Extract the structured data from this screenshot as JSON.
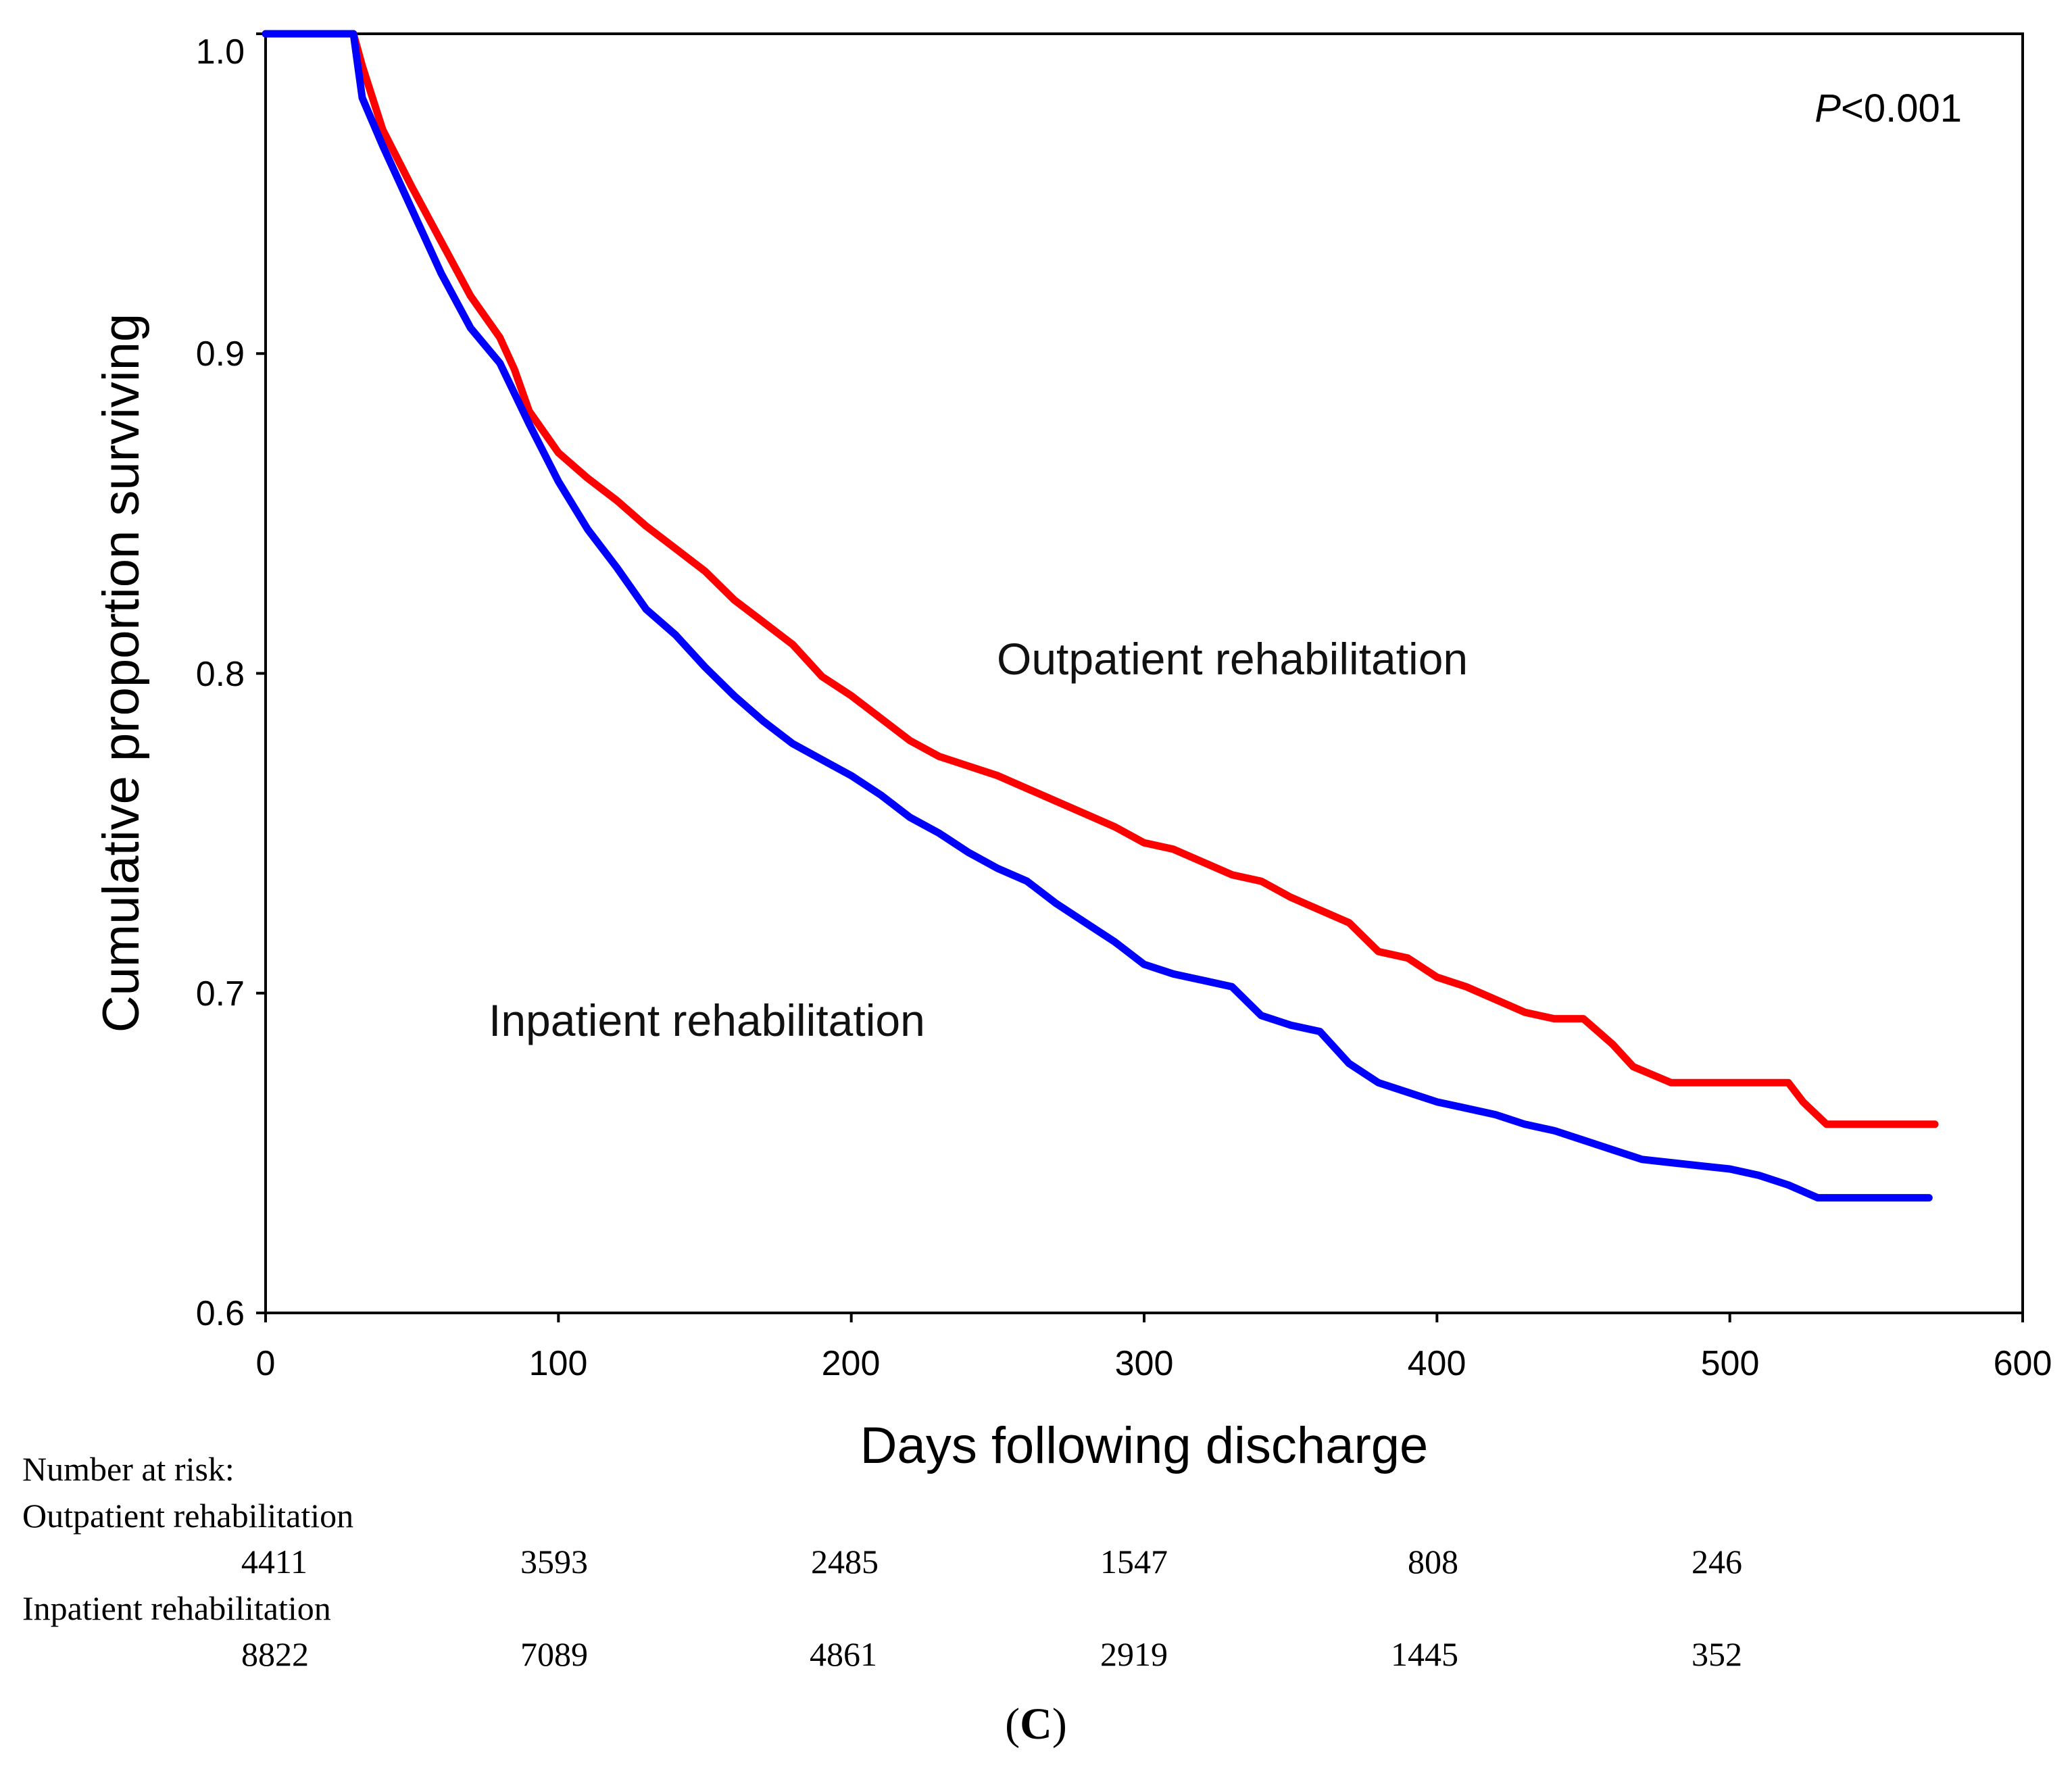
{
  "chart_data": {
    "type": "line",
    "subtype": "kaplan-meier",
    "title": "",
    "xlabel": "Days following discharge",
    "ylabel": "Cumulative proportion surviving",
    "xlim": [
      0,
      600
    ],
    "ylim": [
      0.6,
      1.0
    ],
    "x_ticks": [
      0,
      100,
      200,
      300,
      400,
      500,
      600
    ],
    "x_tick_labels": [
      "0",
      "100",
      "200",
      "300",
      "400",
      "500",
      "600"
    ],
    "y_ticks": [
      0.6,
      0.7,
      0.8,
      0.9,
      1.0
    ],
    "y_tick_labels": [
      "0.6",
      "0.7",
      "0.8",
      "0.9",
      "1.0"
    ],
    "grid": false,
    "series": [
      {
        "name": "Outpatient rehabilitation",
        "color": "#ff0000",
        "points": [
          [
            0,
            1.0
          ],
          [
            30,
            1.0
          ],
          [
            33,
            0.99
          ],
          [
            40,
            0.97
          ],
          [
            50,
            0.952
          ],
          [
            60,
            0.935
          ],
          [
            70,
            0.918
          ],
          [
            80,
            0.905
          ],
          [
            85,
            0.895
          ],
          [
            90,
            0.882
          ],
          [
            100,
            0.869
          ],
          [
            110,
            0.861
          ],
          [
            120,
            0.854
          ],
          [
            130,
            0.846
          ],
          [
            140,
            0.839
          ],
          [
            150,
            0.832
          ],
          [
            160,
            0.823
          ],
          [
            170,
            0.816
          ],
          [
            180,
            0.809
          ],
          [
            190,
            0.799
          ],
          [
            200,
            0.793
          ],
          [
            210,
            0.786
          ],
          [
            220,
            0.779
          ],
          [
            230,
            0.774
          ],
          [
            240,
            0.771
          ],
          [
            250,
            0.768
          ],
          [
            260,
            0.764
          ],
          [
            270,
            0.76
          ],
          [
            280,
            0.756
          ],
          [
            290,
            0.752
          ],
          [
            300,
            0.747
          ],
          [
            310,
            0.745
          ],
          [
            320,
            0.741
          ],
          [
            330,
            0.737
          ],
          [
            340,
            0.735
          ],
          [
            350,
            0.73
          ],
          [
            360,
            0.726
          ],
          [
            370,
            0.722
          ],
          [
            380,
            0.713
          ],
          [
            390,
            0.711
          ],
          [
            400,
            0.705
          ],
          [
            410,
            0.702
          ],
          [
            420,
            0.698
          ],
          [
            430,
            0.694
          ],
          [
            440,
            0.692
          ],
          [
            450,
            0.692
          ],
          [
            460,
            0.684
          ],
          [
            467,
            0.677
          ],
          [
            480,
            0.672
          ],
          [
            500,
            0.672
          ],
          [
            520,
            0.672
          ],
          [
            525,
            0.666
          ],
          [
            533,
            0.659
          ],
          [
            550,
            0.659
          ],
          [
            570,
            0.659
          ]
        ]
      },
      {
        "name": "Inpatient rehabilitation",
        "color": "#0000ff",
        "points": [
          [
            0,
            1.0
          ],
          [
            30,
            1.0
          ],
          [
            33,
            0.98
          ],
          [
            40,
            0.965
          ],
          [
            50,
            0.945
          ],
          [
            60,
            0.925
          ],
          [
            70,
            0.908
          ],
          [
            80,
            0.897
          ],
          [
            90,
            0.878
          ],
          [
            100,
            0.86
          ],
          [
            110,
            0.845
          ],
          [
            120,
            0.833
          ],
          [
            130,
            0.82
          ],
          [
            140,
            0.812
          ],
          [
            150,
            0.802
          ],
          [
            160,
            0.793
          ],
          [
            170,
            0.785
          ],
          [
            180,
            0.778
          ],
          [
            190,
            0.773
          ],
          [
            200,
            0.768
          ],
          [
            210,
            0.762
          ],
          [
            220,
            0.755
          ],
          [
            230,
            0.75
          ],
          [
            240,
            0.744
          ],
          [
            250,
            0.739
          ],
          [
            260,
            0.735
          ],
          [
            270,
            0.728
          ],
          [
            280,
            0.722
          ],
          [
            290,
            0.716
          ],
          [
            300,
            0.709
          ],
          [
            310,
            0.706
          ],
          [
            320,
            0.704
          ],
          [
            330,
            0.702
          ],
          [
            340,
            0.693
          ],
          [
            350,
            0.69
          ],
          [
            360,
            0.688
          ],
          [
            370,
            0.678
          ],
          [
            380,
            0.672
          ],
          [
            390,
            0.669
          ],
          [
            400,
            0.666
          ],
          [
            410,
            0.664
          ],
          [
            420,
            0.662
          ],
          [
            430,
            0.659
          ],
          [
            440,
            0.657
          ],
          [
            450,
            0.654
          ],
          [
            460,
            0.651
          ],
          [
            470,
            0.648
          ],
          [
            480,
            0.647
          ],
          [
            490,
            0.646
          ],
          [
            500,
            0.645
          ],
          [
            510,
            0.643
          ],
          [
            520,
            0.64
          ],
          [
            530,
            0.636
          ],
          [
            550,
            0.636
          ],
          [
            568,
            0.636
          ]
        ]
      }
    ],
    "annotations": {
      "p_value_italic": "P",
      "p_value_rest": "<0.001",
      "outpatient_label": "Outpatient rehabilitation",
      "inpatient_label": "Inpatient rehabilitation"
    },
    "risk_table": {
      "heading": "Number at risk:",
      "rows": [
        {
          "label": "Outpatient rehabilitation",
          "values": [
            "4411",
            "3593",
            "2485",
            "1547",
            "808",
            "246"
          ]
        },
        {
          "label": "Inpatient rehabilitation",
          "values": [
            "8822",
            "7089",
            "4861",
            "2919",
            "1445",
            "352"
          ]
        }
      ]
    },
    "panel_letter": "C"
  }
}
